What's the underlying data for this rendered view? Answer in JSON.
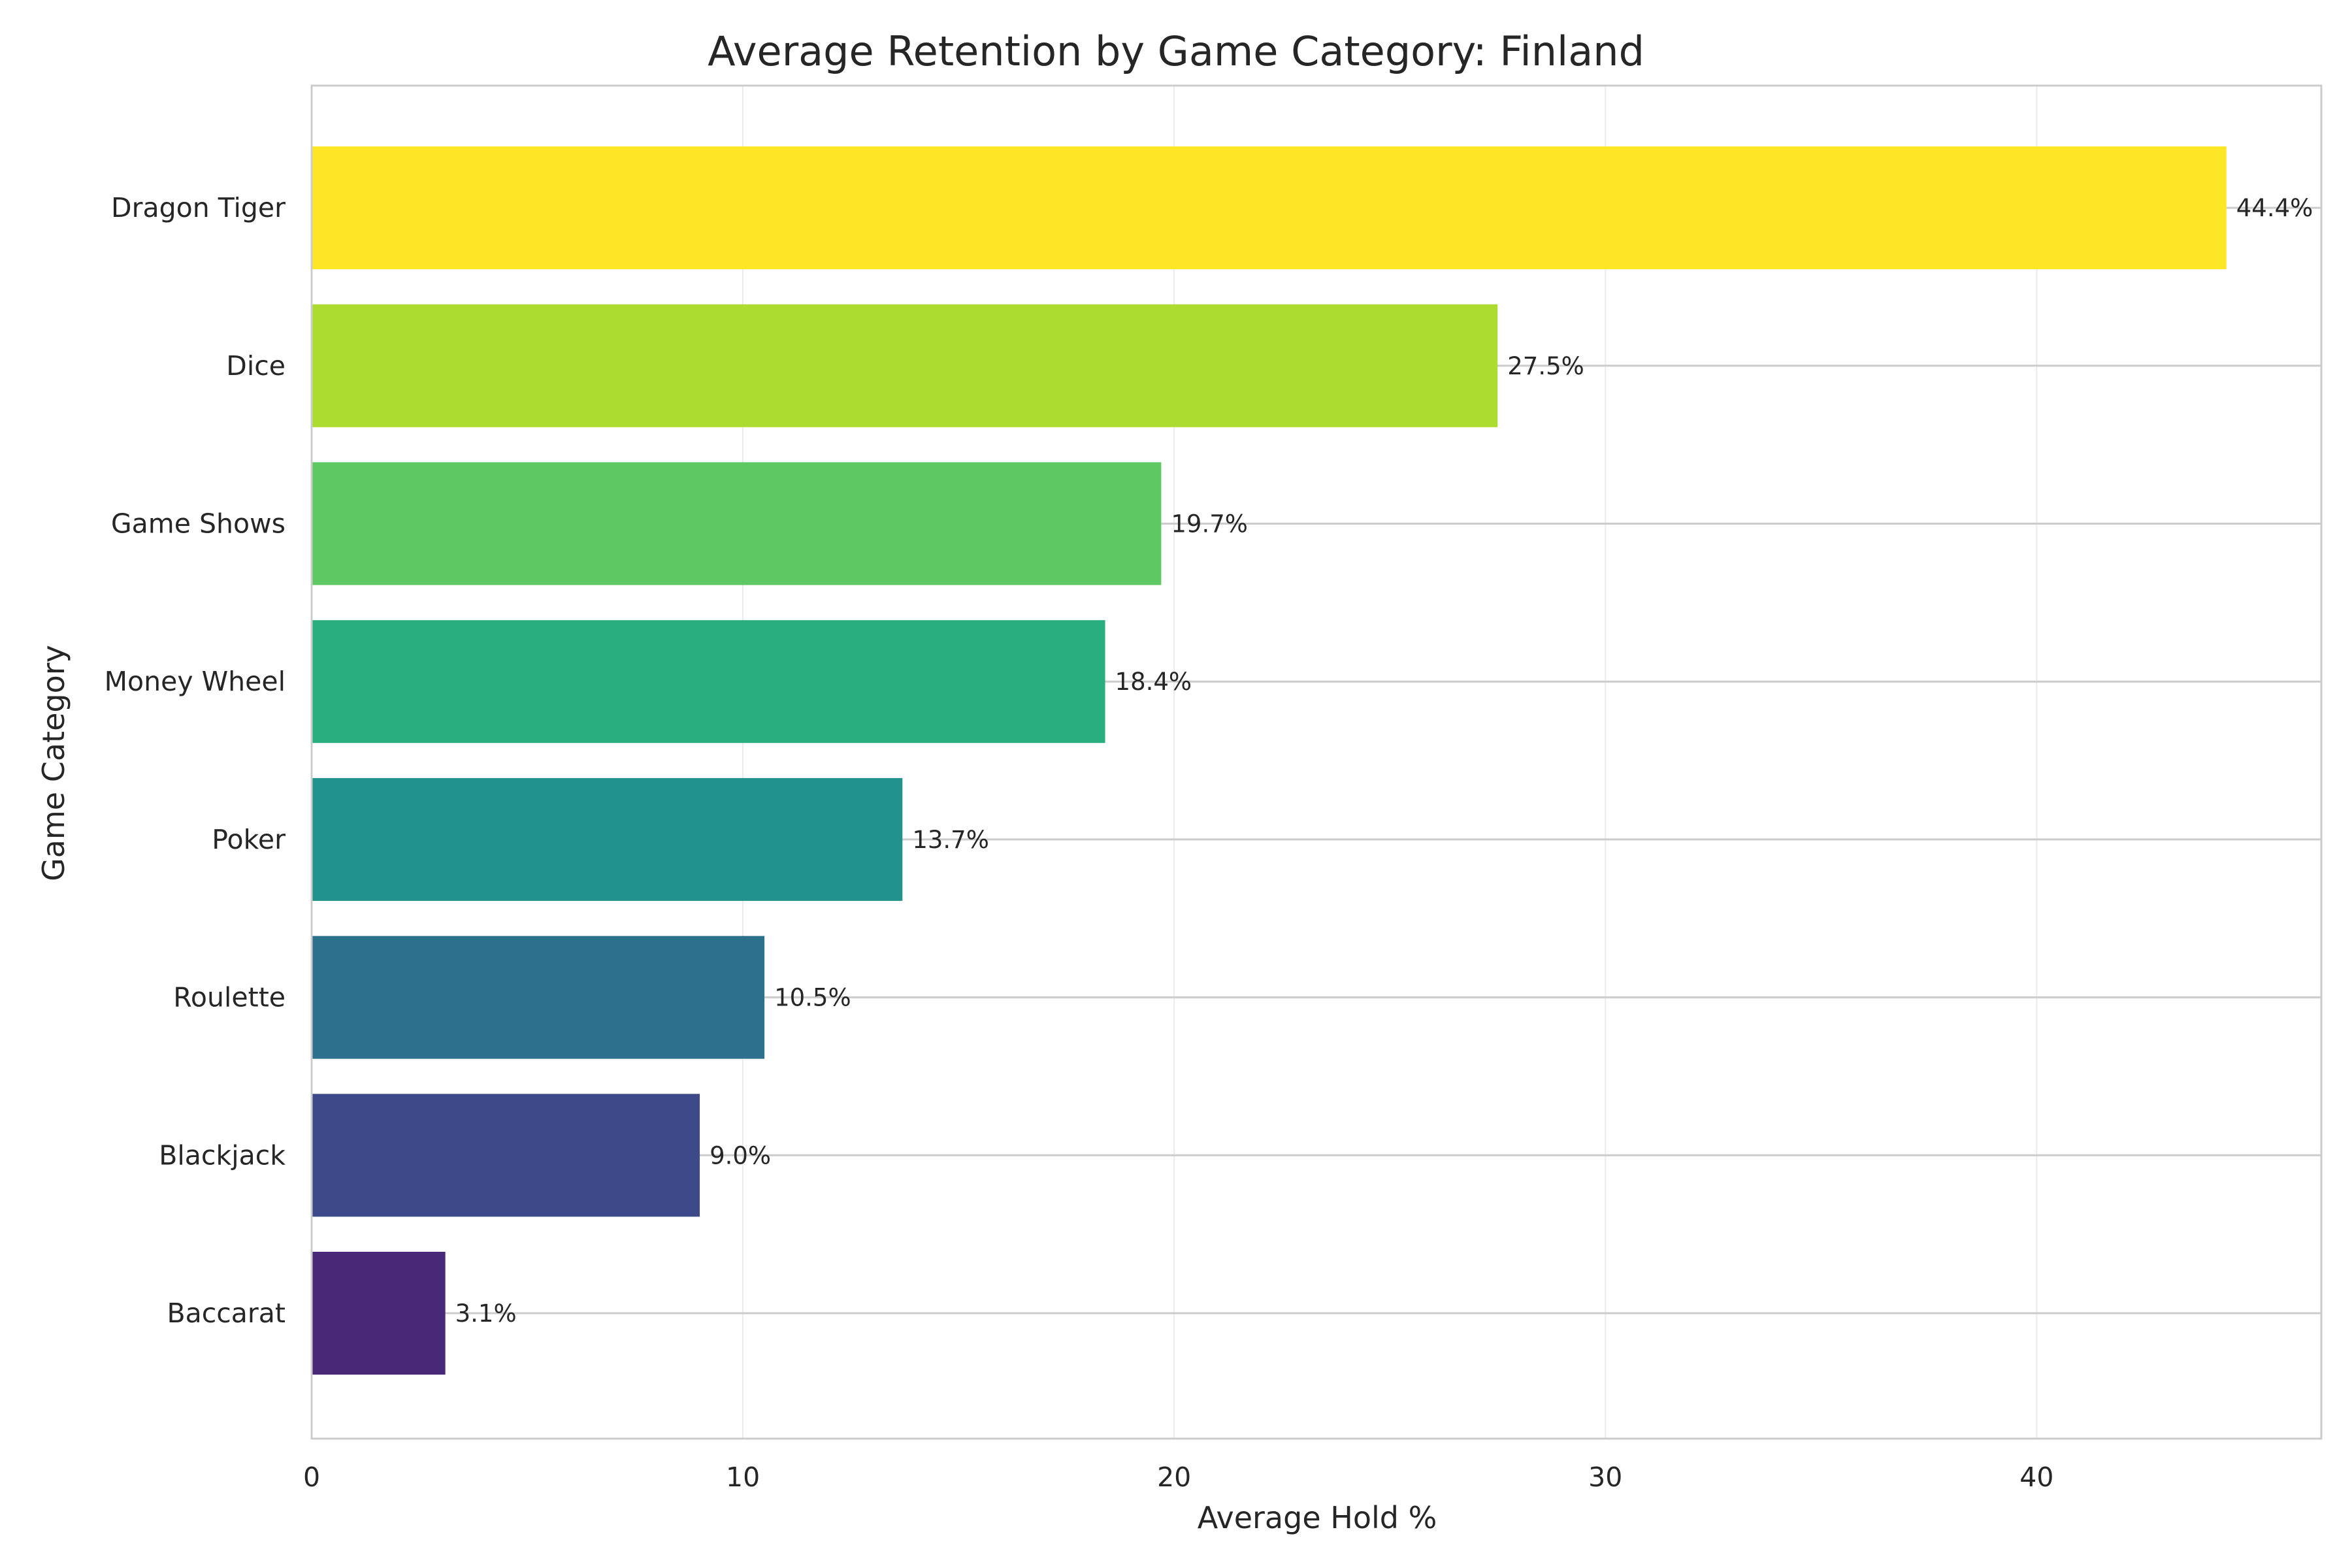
{
  "chart_data": {
    "type": "bar",
    "orientation": "horizontal",
    "title": "Average Retention by Game Category: Finland",
    "xlabel": "Average Hold %",
    "ylabel": "Game Category",
    "xlim": [
      0,
      46.6
    ],
    "xticks": [
      0,
      10,
      20,
      30,
      40
    ],
    "grid": true,
    "categories": [
      "Baccarat",
      "Blackjack",
      "Roulette",
      "Poker",
      "Money Wheel",
      "Game Shows",
      "Dice",
      "Dragon Tiger"
    ],
    "values": [
      3.1,
      9.0,
      10.5,
      13.7,
      18.4,
      19.7,
      27.5,
      44.4
    ],
    "data_labels": [
      "3.1%",
      "9.0%",
      "10.5%",
      "13.7%",
      "18.4%",
      "19.7%",
      "27.5%",
      "44.4%"
    ],
    "colors": [
      "#482878",
      "#3e4989",
      "#2d708e",
      "#21918c",
      "#29af7f",
      "#5ec962",
      "#addc30",
      "#fde725"
    ]
  }
}
